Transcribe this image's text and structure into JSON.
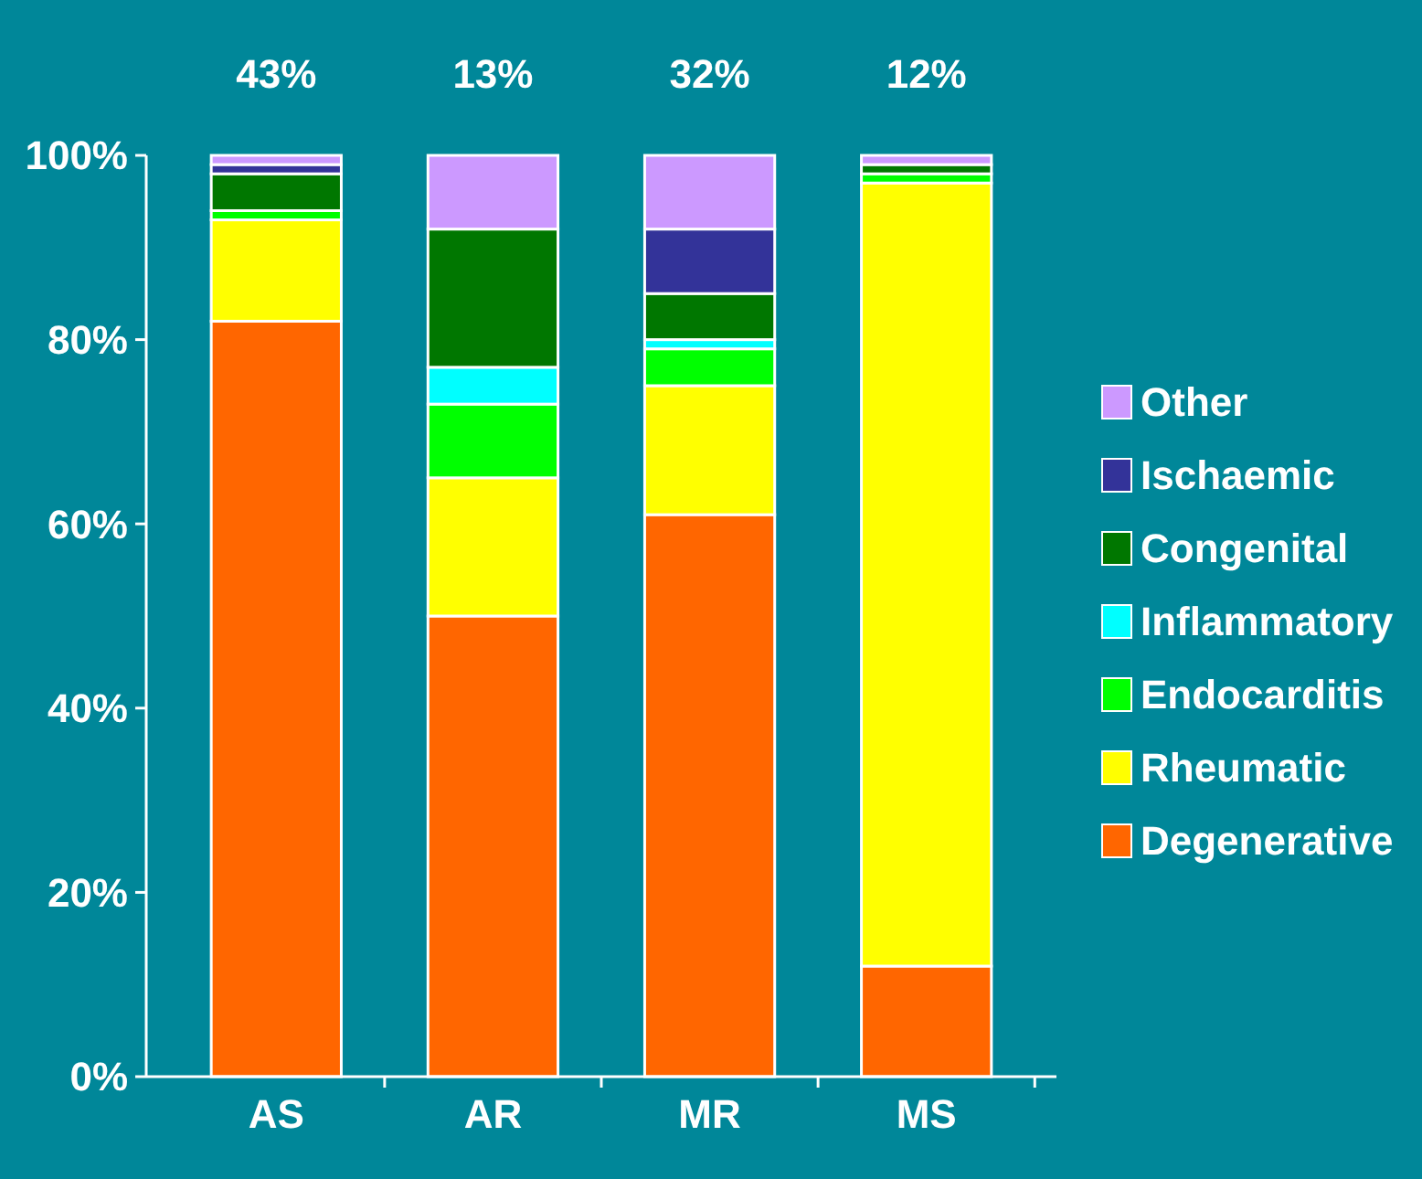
{
  "chart_data": {
    "type": "bar",
    "stacked": true,
    "categories": [
      "AS",
      "AR",
      "MR",
      "MS"
    ],
    "series": [
      {
        "name": "Degenerative",
        "color": "#ff6600",
        "values": [
          82,
          50,
          61,
          12
        ]
      },
      {
        "name": "Rheumatic",
        "color": "#ffff00",
        "values": [
          11,
          15,
          14,
          85
        ]
      },
      {
        "name": "Endocarditis",
        "color": "#00ff00",
        "values": [
          1,
          8,
          4,
          1
        ]
      },
      {
        "name": "Inflammatory",
        "color": "#00ffff",
        "values": [
          0,
          4,
          1,
          0
        ]
      },
      {
        "name": "Congenital",
        "color": "#007700",
        "values": [
          4,
          15,
          5,
          1
        ]
      },
      {
        "name": "Ischaemic",
        "color": "#333399",
        "values": [
          1,
          0,
          7,
          0
        ]
      },
      {
        "name": "Other",
        "color": "#cc99ff",
        "values": [
          1,
          8,
          8,
          1
        ]
      }
    ],
    "ylim": [
      0,
      100
    ],
    "yticks": [
      {
        "value": 0,
        "label": "0%"
      },
      {
        "value": 20,
        "label": "20%"
      },
      {
        "value": 40,
        "label": "40%"
      },
      {
        "value": 60,
        "label": "60%"
      },
      {
        "value": 80,
        "label": "80%"
      },
      {
        "value": 100,
        "label": "100%"
      }
    ],
    "legend": "right",
    "annotations": [
      "43%",
      "13%",
      "32%",
      "12%"
    ]
  }
}
